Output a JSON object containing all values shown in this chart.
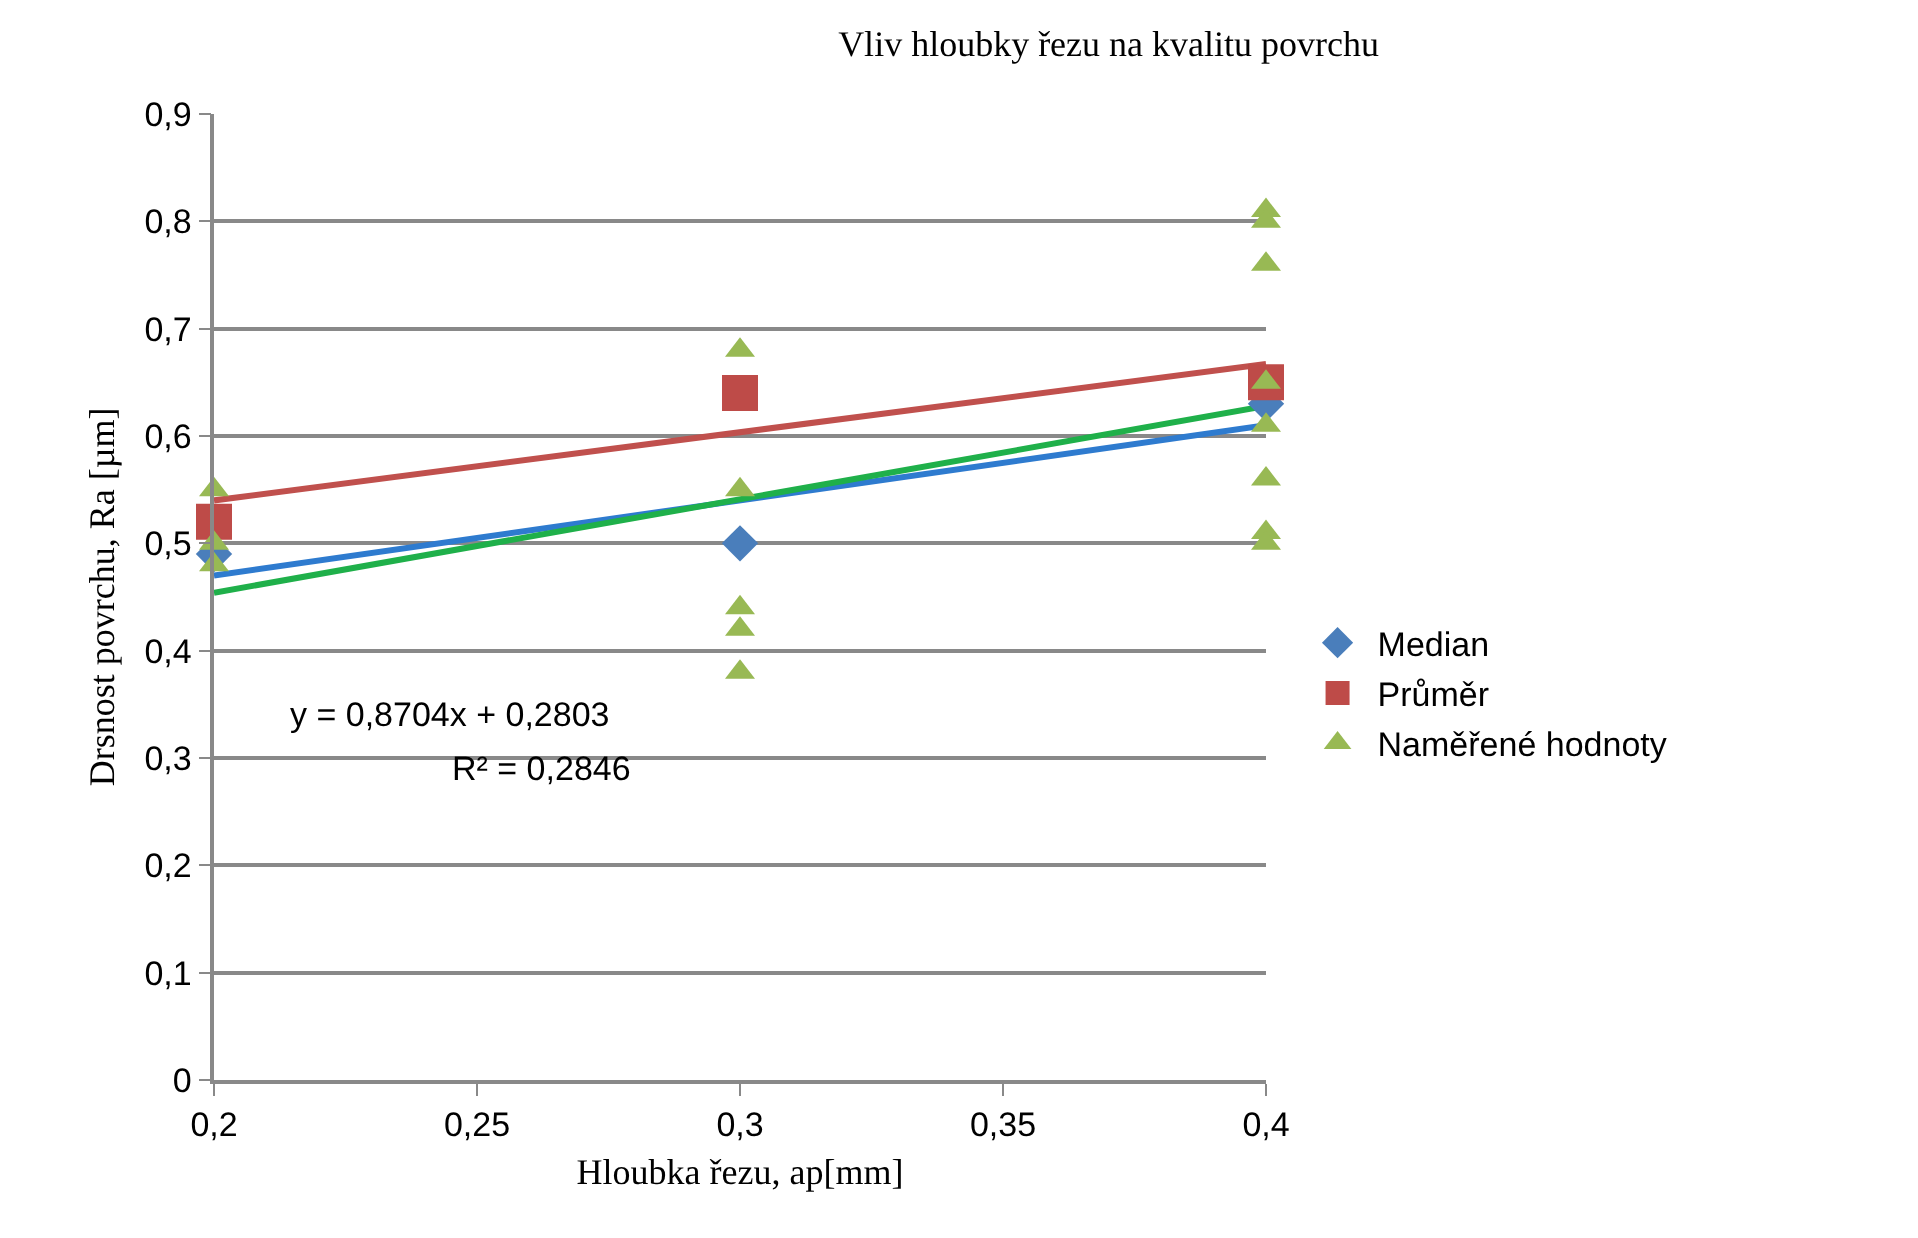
{
  "chart_data": {
    "type": "scatter",
    "title": "Vliv hloubky řezu na kvalitu povrchu",
    "xlabel": "Hloubka řezu, ap[mm]",
    "ylabel": "Drsnost povrchu, Ra [µm]",
    "xlim": [
      0.2,
      0.4
    ],
    "xticks": [
      {
        "value": 0.2,
        "label": "0,2"
      },
      {
        "value": 0.25,
        "label": "0,25"
      },
      {
        "value": 0.3,
        "label": "0,3"
      },
      {
        "value": 0.35,
        "label": "0,35"
      },
      {
        "value": 0.4,
        "label": "0,4"
      }
    ],
    "ylim": [
      0,
      0.9
    ],
    "yticks": [
      {
        "value": 0,
        "label": "0"
      },
      {
        "value": 0.1,
        "label": "0,1"
      },
      {
        "value": 0.2,
        "label": "0,2"
      },
      {
        "value": 0.3,
        "label": "0,3"
      },
      {
        "value": 0.4,
        "label": "0,4"
      },
      {
        "value": 0.5,
        "label": "0,5"
      },
      {
        "value": 0.6,
        "label": "0,6"
      },
      {
        "value": 0.7,
        "label": "0,7"
      },
      {
        "value": 0.8,
        "label": "0,8"
      },
      {
        "value": 0.9,
        "label": "0,9"
      }
    ],
    "grid": "y",
    "legend": "right",
    "series": [
      {
        "name": "Median",
        "color": "#4a7ebb",
        "marker": "diamond",
        "x": [
          0.2,
          0.3,
          0.4
        ],
        "values": [
          0.49,
          0.5,
          0.63
        ]
      },
      {
        "name": "Průměr",
        "color": "#be4b48",
        "marker": "square",
        "x": [
          0.2,
          0.3,
          0.4
        ],
        "values": [
          0.52,
          0.64,
          0.65
        ]
      },
      {
        "name": "Naměřené hodnoty",
        "color": "#98b954",
        "marker": "triangle",
        "x": [
          0.2,
          0.2,
          0.2,
          0.3,
          0.3,
          0.3,
          0.3,
          0.3,
          0.4,
          0.4,
          0.4,
          0.4,
          0.4,
          0.4,
          0.4,
          0.4
        ],
        "values": [
          0.55,
          0.5,
          0.48,
          0.68,
          0.55,
          0.44,
          0.42,
          0.38,
          0.81,
          0.8,
          0.76,
          0.65,
          0.61,
          0.56,
          0.51,
          0.5
        ]
      },
      {
        "type": "line",
        "color": "#2e7bcf",
        "x": [
          0.2,
          0.4
        ],
        "values": [
          0.47,
          0.61
        ]
      },
      {
        "type": "line",
        "color": "#c0504d",
        "x": [
          0.2,
          0.4
        ],
        "values": [
          0.54,
          0.667
        ]
      },
      {
        "type": "line",
        "color": "#1fb04a",
        "x": [
          0.2,
          0.4
        ],
        "values": [
          0.454,
          0.628
        ]
      }
    ],
    "annotations": [
      "y = 0,8704x + 0,2803",
      "R² = 0,2846"
    ]
  }
}
